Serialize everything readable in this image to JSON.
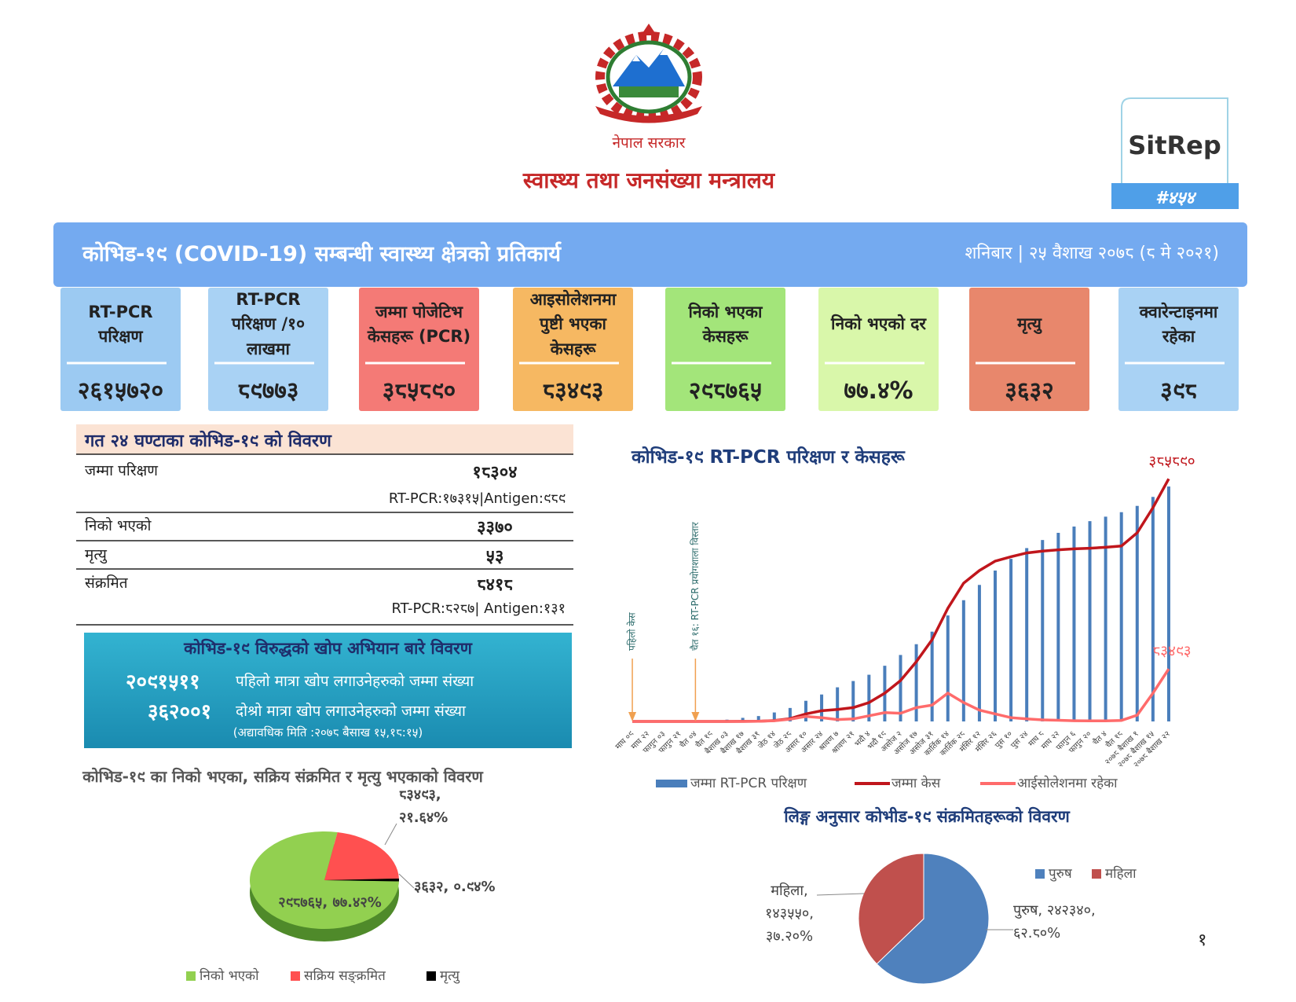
{
  "header": {
    "government": "नेपाल सरकार",
    "ministry": "स्वास्थ्य तथा जनसंख्या मन्त्रालय",
    "sitrep": "SitRep",
    "number": "#४५४"
  },
  "banner": {
    "title": "कोभिड-१९ (COVID-19) सम्बन्धी स्वास्थ्य क्षेत्रको प्रतिकार्य",
    "date": "शनिबार | २५ वैशाख २०७८ (८ मे २०२१)"
  },
  "cards": [
    {
      "label": "RT-PCR परिक्षण",
      "value": "२६१५७२०",
      "color": "#9ccaf2"
    },
    {
      "label": "RT-PCR परिक्षण /१० लाखमा",
      "value": "८९७७३",
      "color": "#a9d2f4"
    },
    {
      "label": "जम्मा पोजेटिभ केसहरू (PCR)",
      "value": "३८५८९०",
      "color": "#f47a76"
    },
    {
      "label": "आइसोलेशनमा पुष्टी भएका केसहरू",
      "value": "८३४९३",
      "color": "#f6b862"
    },
    {
      "label": "निको भएका केसहरू",
      "value": "२९८७६५",
      "color": "#a3e57a"
    },
    {
      "label": "निको भएको दर",
      "value": "७७.४%",
      "color": "#d9f7aa"
    },
    {
      "label": "मृत्यु",
      "value": "३६३२",
      "color": "#e8876c"
    },
    {
      "label": "क्वारेन्टाइनमा रहेका",
      "value": "३९८",
      "color": "#a9d2f4"
    }
  ],
  "last24": {
    "title": "गत २४ घण्टाका कोभिड-१९ को विवरण",
    "rows": [
      {
        "label": "जम्मा परिक्षण",
        "value": "१८३०४",
        "note": "RT-PCR:१७३१५|Antigen:९८९"
      },
      {
        "label": "निको भएको",
        "value": "३३७०"
      },
      {
        "label": "मृत्यु",
        "value": "५३"
      },
      {
        "label": "संक्रमित",
        "value": "८४१८",
        "note": "RT-PCR:८२८७| Antigen:१३१"
      }
    ]
  },
  "vaccine": {
    "title": "कोभिड-१९ विरुद्धको खोप अभियान बारे विवरण",
    "lines": [
      {
        "value": "२०९१५११",
        "text": "पहिलो मात्रा खोप लगाउनेहरुको जम्मा संख्या"
      },
      {
        "value": "३६२००१",
        "text": "दोश्रो मात्रा खोप लगाउनेहरुको जम्मा संख्या"
      }
    ],
    "note": "(अद्यावधिक मिति :२०७८ बैसाख १५,१८:१५)"
  },
  "page_number": "१",
  "chart_data": [
    {
      "type": "bar-line",
      "title": "कोभिड-१९ RT-PCR परिक्षण र केसहरू",
      "categories": [
        "माघ ०९",
        "माघ २२",
        "फागुन ०३",
        "फागुन २१",
        "चैत ०४",
        "चैत १९",
        "बैशाख ०३",
        "बैशाख १७",
        "बैशाख ३१",
        "जेठ १४",
        "जेठ २८",
        "असार १०",
        "असार २४",
        "श्रावण ७",
        "श्रावण २१",
        "भदौ ४",
        "भदौ १९",
        "असोज २",
        "असोज १७",
        "असोज ३१",
        "कार्तिक १४",
        "कार्तिक २८",
        "मंसिर १२",
        "मंसिर २६",
        "पुस १०",
        "पुस २४",
        "माघ ८",
        "माघ २२",
        "फागुन ६",
        "फागुन २०",
        "चैत ४",
        "चैत १८",
        "२०७८ बैशाख १",
        "२०७८ बैशाख १५",
        "२०७८ बैशाख २२"
      ],
      "ylim": [
        0,
        400000
      ],
      "y2lim": [
        0,
        2800000
      ],
      "series": [
        {
          "name": "जम्मा RT-PCR परिक्षण",
          "color": "#4a7ebb",
          "kind": "bar",
          "axis": "y2",
          "values": [
            0,
            0,
            0,
            0,
            0,
            1500,
            20000,
            40000,
            60000,
            100000,
            150000,
            230000,
            300000,
            380000,
            450000,
            520000,
            620000,
            740000,
            860000,
            1000000,
            1180000,
            1350000,
            1520000,
            1680000,
            1810000,
            1930000,
            2020000,
            2100000,
            2170000,
            2230000,
            2280000,
            2330000,
            2400000,
            2500000,
            2615720
          ]
        },
        {
          "name": "जम्मा केस",
          "color": "#c0161c",
          "kind": "line",
          "end_label": "३८५८९०",
          "values": [
            0,
            0,
            0,
            0,
            0,
            1,
            31,
            82,
            290,
            1400,
            4400,
            12000,
            17000,
            19000,
            22000,
            30000,
            45000,
            65000,
            95000,
            130000,
            180000,
            220000,
            240000,
            255000,
            262000,
            268000,
            271000,
            273000,
            274500,
            275500,
            277000,
            279000,
            300000,
            340000,
            385890
          ]
        },
        {
          "name": "आईसोलेशनमा रहेका",
          "color": "#ff6b6b",
          "kind": "line",
          "end_label": "८३४९३",
          "values": [
            0,
            0,
            0,
            0,
            0,
            1,
            29,
            65,
            250,
            1100,
            3500,
            8000,
            6000,
            3000,
            4000,
            9000,
            14000,
            13000,
            22000,
            26000,
            45000,
            30000,
            18000,
            12000,
            6000,
            4000,
            2500,
            1800,
            1100,
            900,
            1000,
            1600,
            10000,
            45000,
            83493
          ]
        }
      ],
      "annotations": [
        {
          "text": "पहिलो केस",
          "x": "माघ ०९"
        },
        {
          "text": "चैत १६: RT-PCR प्रयोगशाला विस्तार",
          "x": "चैत ०४"
        }
      ]
    },
    {
      "type": "pie",
      "title": "कोभिड-१९ का निको भएका, सक्रिय संक्रमित र मृत्यु भएकाको विवरण",
      "categories": [
        "निको भएको",
        "सक्रिय सङ्क्रमित",
        "मृत्यु"
      ],
      "values": [
        77.42,
        21.64,
        0.94
      ],
      "value_labels": [
        "२९८७६५, ७७.४२%",
        "८३४९३, २१.६४%",
        "३६३२, ०.९४%"
      ],
      "colors": [
        "#92d050",
        "#ff5050",
        "#000000"
      ]
    },
    {
      "type": "pie",
      "title": "लिङ्ग अनुसार कोभीड-१९ संक्रमितहरूको विवरण",
      "categories": [
        "पुरुष",
        "महिला"
      ],
      "values": [
        62.8,
        37.2
      ],
      "value_labels": [
        "पुरुष, २४२३४०, ६२.८०%",
        "महिला, १४३५५०, ३७.२०%"
      ],
      "colors": [
        "#4f81bd",
        "#c0504d"
      ]
    }
  ]
}
